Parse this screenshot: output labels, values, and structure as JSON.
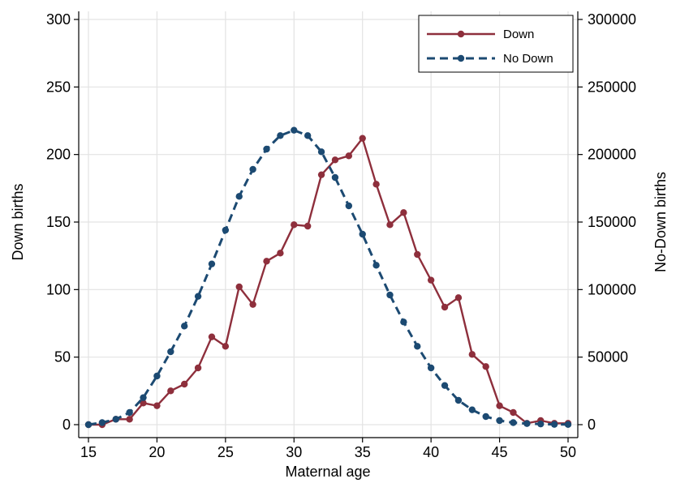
{
  "chart_data": {
    "type": "line",
    "xlabel": "Maternal age",
    "ylabel_left": "Down births",
    "ylabel_right": "No-Down births",
    "x_ticks": [
      15,
      20,
      25,
      30,
      35,
      40,
      45,
      50
    ],
    "y_left_ticks": [
      0,
      50,
      100,
      150,
      200,
      250,
      300
    ],
    "y_right_ticks": [
      0,
      50000,
      100000,
      150000,
      200000,
      250000,
      300000
    ],
    "xlim": [
      15,
      50
    ],
    "ylim_left": [
      0,
      300
    ],
    "ylim_right": [
      0,
      300000
    ],
    "grid": true,
    "legend_position": "top-right",
    "x": [
      15,
      16,
      17,
      18,
      19,
      20,
      21,
      22,
      23,
      24,
      25,
      26,
      27,
      28,
      29,
      30,
      31,
      32,
      33,
      34,
      35,
      36,
      37,
      38,
      39,
      40,
      41,
      42,
      43,
      44,
      45,
      46,
      47,
      48,
      49,
      50
    ],
    "series": [
      {
        "name": "Down",
        "axis": "left",
        "color": "#8e2f3c",
        "style": "solid",
        "values": [
          0,
          0,
          4,
          4,
          16,
          14,
          25,
          30,
          42,
          65,
          58,
          102,
          89,
          121,
          127,
          148,
          147,
          185,
          196,
          199,
          212,
          178,
          148,
          157,
          126,
          107,
          87,
          94,
          52,
          43,
          14,
          9,
          1,
          3,
          1,
          1
        ]
      },
      {
        "name": "No Down",
        "axis": "right",
        "color": "#1c4a72",
        "style": "dashed",
        "values": [
          0,
          1500,
          4000,
          9000,
          20000,
          36000,
          54000,
          73000,
          95000,
          119000,
          144000,
          169000,
          189000,
          204000,
          214000,
          218000,
          214000,
          202000,
          183000,
          162000,
          141000,
          118000,
          96000,
          76000,
          58000,
          42000,
          29000,
          18000,
          11000,
          6000,
          3000,
          1500,
          800,
          500,
          200,
          100
        ]
      }
    ]
  }
}
